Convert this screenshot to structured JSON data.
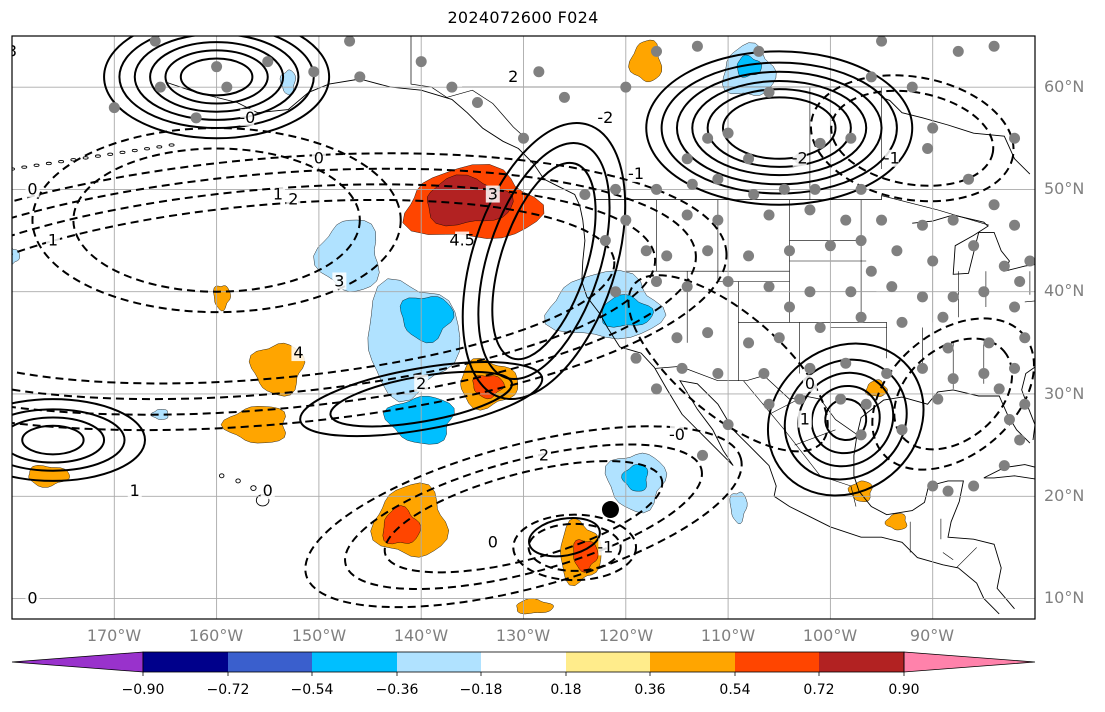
{
  "title": "2024072600 F024",
  "map": {
    "projection": "equidistant cylindrical",
    "extent": {
      "lon_min": -180,
      "lon_max": -80,
      "lat_min": 8,
      "lat_max": 65
    },
    "gridlines": true,
    "lat_labels": [
      "60°N",
      "50°N",
      "40°N",
      "30°N",
      "20°N",
      "10°N"
    ],
    "lon_labels": [
      "170°W",
      "160°W",
      "150°W",
      "140°W",
      "130°W",
      "120°W",
      "110°W",
      "100°W",
      "90°W"
    ],
    "label_color": "#808080",
    "contour_labels": [
      "3",
      "2",
      "0",
      "-0",
      "1",
      "2",
      "3",
      "4.5",
      "-1",
      "-2",
      "0",
      "1",
      "2",
      "3",
      "4",
      "-0",
      "-1",
      "-2",
      "1",
      "0",
      "0",
      "-1",
      "0",
      "2",
      "1",
      "0"
    ],
    "station_marker_color": "#808080",
    "highlight_marker": {
      "lon": -121.5,
      "lat": 18.7,
      "color": "#000000"
    }
  },
  "colorbar": {
    "orientation": "horizontal",
    "extend": "both",
    "tick_labels": [
      "−0.90",
      "−0.72",
      "−0.54",
      "−0.36",
      "−0.18",
      "0.18",
      "0.36",
      "0.54",
      "0.72",
      "0.90"
    ],
    "colors": [
      "#9932cc",
      "#00008b",
      "#3a5fcd",
      "#00bfff",
      "#b0e2ff",
      "#ffffff",
      "#ffec8b",
      "#ffa500",
      "#ff4500",
      "#b22222",
      "#ff82ab"
    ]
  },
  "chart_data": {
    "type": "heatmap",
    "title": "2024072600 F024",
    "levels": [
      -0.9,
      -0.72,
      -0.54,
      -0.36,
      -0.18,
      0.18,
      0.36,
      0.54,
      0.72,
      0.9
    ],
    "anomaly_regions": [
      {
        "lon": -135,
        "lat": 48.5,
        "rx": 6.5,
        "ry": 3.5,
        "level": 0.54
      },
      {
        "lon": -135.5,
        "lat": 48.8,
        "rx": 4.2,
        "ry": 2.3,
        "level": 0.72
      },
      {
        "lon": -141,
        "lat": 35.5,
        "rx": 4.5,
        "ry": 5.5,
        "level": -0.36
      },
      {
        "lon": -139.5,
        "lat": 37.5,
        "rx": 2.5,
        "ry": 2.2,
        "level": -0.54
      },
      {
        "lon": -140,
        "lat": 27.5,
        "rx": 3.2,
        "ry": 2.3,
        "level": -0.54
      },
      {
        "lon": -147,
        "lat": 43.5,
        "rx": 3,
        "ry": 3.5,
        "level": -0.36
      },
      {
        "lon": -122,
        "lat": 38.5,
        "rx": 5.5,
        "ry": 3.2,
        "level": -0.36
      },
      {
        "lon": -120,
        "lat": 38,
        "rx": 2.5,
        "ry": 1.5,
        "level": -0.54
      },
      {
        "lon": -133.5,
        "lat": 31,
        "rx": 2.8,
        "ry": 2.3,
        "level": 0.36
      },
      {
        "lon": -133.5,
        "lat": 30.8,
        "rx": 1.5,
        "ry": 1.1,
        "level": 0.54
      },
      {
        "lon": -154,
        "lat": 32.5,
        "rx": 2.5,
        "ry": 2.5,
        "level": 0.36
      },
      {
        "lon": -156,
        "lat": 27,
        "rx": 3,
        "ry": 1.8,
        "level": 0.36
      },
      {
        "lon": -141,
        "lat": 17.5,
        "rx": 3.5,
        "ry": 3.5,
        "level": 0.36
      },
      {
        "lon": -142,
        "lat": 17,
        "rx": 1.8,
        "ry": 1.8,
        "level": 0.54
      },
      {
        "lon": -124.5,
        "lat": 14.5,
        "rx": 2,
        "ry": 3,
        "level": 0.36
      },
      {
        "lon": -124,
        "lat": 14.3,
        "rx": 1.2,
        "ry": 1.5,
        "level": 0.54
      },
      {
        "lon": -119,
        "lat": 21.5,
        "rx": 2.8,
        "ry": 2.8,
        "level": -0.36
      },
      {
        "lon": -119,
        "lat": 21.8,
        "rx": 1.2,
        "ry": 1.3,
        "level": -0.54
      },
      {
        "lon": -118,
        "lat": 62.5,
        "rx": 1.5,
        "ry": 2,
        "level": 0.36
      },
      {
        "lon": -108,
        "lat": 61.5,
        "rx": 2.5,
        "ry": 2.5,
        "level": -0.36
      },
      {
        "lon": -108,
        "lat": 62,
        "rx": 1.2,
        "ry": 1,
        "level": -0.54
      },
      {
        "lon": -176.5,
        "lat": 22,
        "rx": 2,
        "ry": 1,
        "level": 0.36
      },
      {
        "lon": -109,
        "lat": 19,
        "rx": 0.8,
        "ry": 1.5,
        "level": -0.36
      },
      {
        "lon": -97,
        "lat": 20.5,
        "rx": 1.1,
        "ry": 1,
        "level": 0.36
      },
      {
        "lon": -93.5,
        "lat": 17.5,
        "rx": 1,
        "ry": 0.8,
        "level": 0.36
      },
      {
        "lon": -95.5,
        "lat": 30.5,
        "rx": 1,
        "ry": 0.8,
        "level": 0.36
      },
      {
        "lon": -129,
        "lat": 9.2,
        "rx": 1.8,
        "ry": 0.7,
        "level": 0.36
      },
      {
        "lon": -180,
        "lat": 43.5,
        "rx": 0.7,
        "ry": 0.8,
        "level": -0.36
      },
      {
        "lon": -159.5,
        "lat": 39.5,
        "rx": 0.8,
        "ry": 1.2,
        "level": 0.36
      },
      {
        "lon": -153,
        "lat": 60.5,
        "rx": 0.7,
        "ry": 1.2,
        "level": -0.36
      },
      {
        "lon": -165.5,
        "lat": 28,
        "rx": 0.8,
        "ry": 0.5,
        "level": -0.36
      }
    ],
    "stations": [
      [
        -166,
        64.5
      ],
      [
        -155,
        62.5
      ],
      [
        -165.5,
        60
      ],
      [
        -170,
        58
      ],
      [
        -160,
        62
      ],
      [
        -159,
        60
      ],
      [
        -162,
        57
      ],
      [
        -150.5,
        61.5
      ],
      [
        -147,
        64.5
      ],
      [
        -146,
        61
      ],
      [
        -137,
        60
      ],
      [
        -140,
        62.5
      ],
      [
        -134.5,
        58.5
      ],
      [
        -130,
        55
      ],
      [
        -128.5,
        61.5
      ],
      [
        -126,
        59
      ],
      [
        -120,
        60
      ],
      [
        -117,
        63.5
      ],
      [
        -113,
        64
      ],
      [
        -107,
        63.5
      ],
      [
        -106,
        59.5
      ],
      [
        -112,
        55
      ],
      [
        -114,
        53
      ],
      [
        -108,
        53
      ],
      [
        -110,
        55.5
      ],
      [
        -103,
        53
      ],
      [
        -101,
        54.5
      ],
      [
        -98,
        55
      ],
      [
        -96,
        61
      ],
      [
        -95,
        64.5
      ],
      [
        -92,
        60
      ],
      [
        -90,
        56
      ],
      [
        -87.5,
        63.5
      ],
      [
        -84,
        64
      ],
      [
        -82,
        55
      ],
      [
        -86.5,
        51
      ],
      [
        -90.5,
        54
      ],
      [
        -97,
        50
      ],
      [
        -101.5,
        50
      ],
      [
        -104.5,
        50
      ],
      [
        -107.5,
        49.5
      ],
      [
        -111,
        51
      ],
      [
        -113.5,
        50.5
      ],
      [
        -117,
        50
      ],
      [
        -121,
        50
      ],
      [
        -124,
        49.5
      ],
      [
        -120,
        47
      ],
      [
        -122,
        45
      ],
      [
        -118,
        44
      ],
      [
        -114,
        47.5
      ],
      [
        -111,
        47
      ],
      [
        -106,
        47.5
      ],
      [
        -102,
        48
      ],
      [
        -98.5,
        47
      ],
      [
        -95,
        47
      ],
      [
        -91,
        46.5
      ],
      [
        -88,
        47
      ],
      [
        -84,
        48.5
      ],
      [
        -82,
        46.5
      ],
      [
        -86,
        44.5
      ],
      [
        -90,
        43
      ],
      [
        -93.5,
        44
      ],
      [
        -97,
        45
      ],
      [
        -100,
        44.5
      ],
      [
        -104,
        44
      ],
      [
        -108,
        43.5
      ],
      [
        -112,
        44
      ],
      [
        -116,
        43.5
      ],
      [
        -121,
        40
      ],
      [
        -117,
        41
      ],
      [
        -114,
        40.5
      ],
      [
        -110,
        41
      ],
      [
        -106,
        40.5
      ],
      [
        -102,
        40
      ],
      [
        -98,
        40
      ],
      [
        -94,
        40.5
      ],
      [
        -91,
        39.5
      ],
      [
        -88,
        39.5
      ],
      [
        -85,
        40
      ],
      [
        -82,
        38.5
      ],
      [
        -89,
        37.5
      ],
      [
        -93,
        37
      ],
      [
        -97,
        37.5
      ],
      [
        -101,
        36.5
      ],
      [
        -105,
        35.5
      ],
      [
        -108,
        35
      ],
      [
        -112,
        36
      ],
      [
        -115,
        35.5
      ],
      [
        -119,
        33.5
      ],
      [
        -114.5,
        32.5
      ],
      [
        -111,
        32
      ],
      [
        -106.5,
        32
      ],
      [
        -102,
        32.5
      ],
      [
        -98.5,
        33
      ],
      [
        -94.5,
        32
      ],
      [
        -91,
        32.5
      ],
      [
        -88,
        31.5
      ],
      [
        -85,
        32
      ],
      [
        -82,
        32.5
      ],
      [
        -81,
        29
      ],
      [
        -82.5,
        27.5
      ],
      [
        -81.5,
        25.5
      ],
      [
        -83,
        23
      ],
      [
        -86,
        21
      ],
      [
        -88.5,
        20.5
      ],
      [
        -90,
        21
      ],
      [
        -97,
        26
      ],
      [
        -99,
        29.5
      ],
      [
        -103,
        29.5
      ],
      [
        -106,
        29
      ],
      [
        -110,
        27
      ],
      [
        -112.5,
        24
      ],
      [
        -117,
        30.5
      ],
      [
        -93,
        26.5
      ],
      [
        -89.5,
        29.5
      ],
      [
        -84.5,
        35
      ],
      [
        -80.5,
        43
      ],
      [
        -81.5,
        41
      ],
      [
        -83,
        42.5
      ],
      [
        -81,
        35.5
      ],
      [
        -83.5,
        30.5
      ],
      [
        -88.5,
        34.5
      ],
      [
        -96,
        42
      ],
      [
        -104,
        38.5
      ],
      [
        -96.5,
        29
      ]
    ]
  }
}
